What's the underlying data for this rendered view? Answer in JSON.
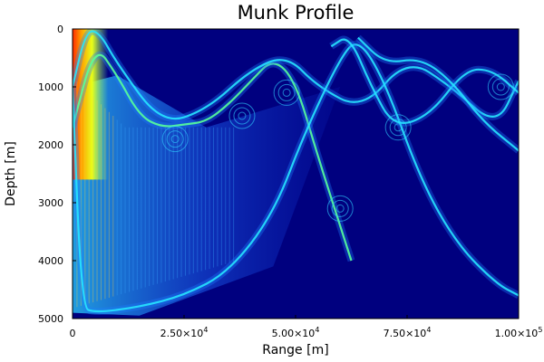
{
  "chart_data": {
    "type": "heatmap",
    "title": "Munk Profile",
    "xlabel": "Range [m]",
    "ylabel": "Depth [m]",
    "xlim": [
      0,
      100000
    ],
    "ylim": [
      5000,
      0
    ],
    "y_inverted": true,
    "grid": false,
    "colormap": "jet",
    "x_ticks": [
      {
        "value": 0,
        "label": "0"
      },
      {
        "value": 25000,
        "mantissa": "2.50×10",
        "exponent": "4"
      },
      {
        "value": 50000,
        "mantissa": "5.00×10",
        "exponent": "4"
      },
      {
        "value": 75000,
        "mantissa": "7.50×10",
        "exponent": "4"
      },
      {
        "value": 100000,
        "mantissa": "1.00×10",
        "exponent": "5"
      }
    ],
    "y_ticks": [
      {
        "value": 0,
        "label": "0"
      },
      {
        "value": 1000,
        "label": "1000"
      },
      {
        "value": 2000,
        "label": "2000"
      },
      {
        "value": 3000,
        "label": "3000"
      },
      {
        "value": 4000,
        "label": "4000"
      },
      {
        "value": 5000,
        "label": "5000"
      }
    ],
    "background_color": "#00007f",
    "ray_paths": [
      {
        "name": "",
        "points": [
          [
            0,
            1700
          ],
          [
            5000,
            250
          ],
          [
            10000,
            800
          ],
          [
            15000,
            1500
          ],
          [
            20000,
            1700
          ],
          [
            25000,
            1650
          ],
          [
            30000,
            1600
          ],
          [
            35000,
            1300
          ],
          [
            40000,
            900
          ],
          [
            45000,
            500
          ],
          [
            50000,
            900
          ],
          [
            55000,
            2200
          ],
          [
            60000,
            3400
          ],
          [
            62500,
            4000
          ]
        ]
      },
      {
        "name": "",
        "points": [
          [
            0,
            1000
          ],
          [
            3000,
            30
          ],
          [
            6000,
            50
          ],
          [
            10000,
            600
          ],
          [
            20000,
            1650
          ],
          [
            30000,
            1400
          ],
          [
            40000,
            700
          ],
          [
            48000,
            450
          ],
          [
            55000,
            1000
          ],
          [
            65000,
            1400
          ],
          [
            75000,
            500
          ],
          [
            85000,
            1000
          ],
          [
            95000,
            1700
          ],
          [
            100000,
            900
          ]
        ]
      },
      {
        "name": "",
        "points": [
          [
            0,
            1000
          ],
          [
            2000,
            4800
          ],
          [
            5000,
            4900
          ],
          [
            15000,
            4800
          ],
          [
            25000,
            4600
          ],
          [
            35000,
            4200
          ],
          [
            45000,
            3200
          ],
          [
            52000,
            1800
          ],
          [
            60000,
            500
          ],
          [
            64000,
            150
          ],
          [
            70000,
            900
          ],
          [
            78000,
            2600
          ],
          [
            86000,
            3700
          ],
          [
            95000,
            4400
          ],
          [
            100000,
            4600
          ]
        ]
      },
      {
        "name": "",
        "points": [
          [
            58000,
            300
          ],
          [
            62000,
            100
          ],
          [
            67000,
            1000
          ],
          [
            72000,
            1700
          ],
          [
            80000,
            1500
          ],
          [
            88000,
            700
          ],
          [
            94000,
            700
          ],
          [
            100000,
            1100
          ]
        ]
      },
      {
        "name": "",
        "points": [
          [
            64000,
            150
          ],
          [
            70000,
            600
          ],
          [
            78000,
            500
          ],
          [
            85000,
            900
          ],
          [
            92000,
            1600
          ],
          [
            100000,
            2100
          ]
        ]
      }
    ],
    "hot_region": {
      "x": [
        0,
        8000
      ],
      "depth": [
        0,
        2600
      ]
    }
  }
}
